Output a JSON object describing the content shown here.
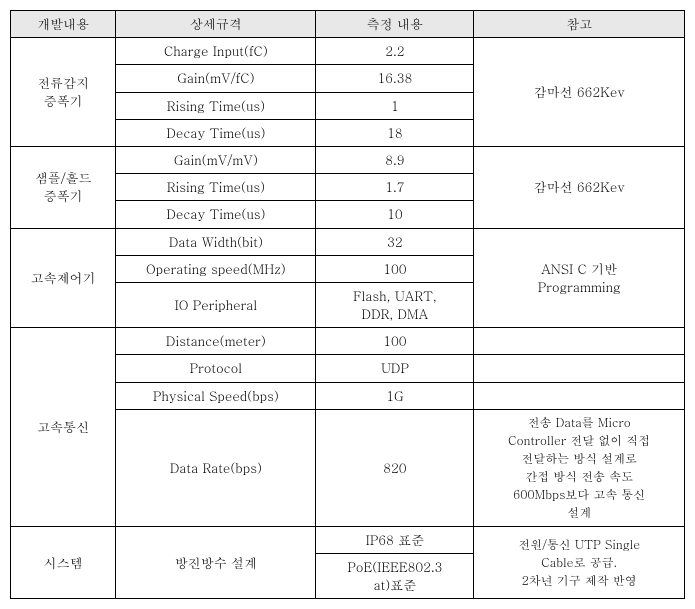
{
  "headers": {
    "c1": "개발내용",
    "c2": "상세규격",
    "c3": "측정 내용",
    "c4": "참고"
  },
  "group1": {
    "name": "전류감지\n증폭기",
    "rows": [
      {
        "spec": "Charge Input(fC)",
        "val": "2.2"
      },
      {
        "spec": "Gain(mV/fC)",
        "val": "16.38"
      },
      {
        "spec": "Rising Time(us)",
        "val": "1"
      },
      {
        "spec": "Decay Time(us)",
        "val": "18"
      }
    ],
    "note": "감마선 662Kev"
  },
  "group2": {
    "name": "샘플/홀드\n증폭기",
    "rows": [
      {
        "spec": "Gain(mV/mV)",
        "val": "8.9"
      },
      {
        "spec": "Rising Time(us)",
        "val": "1.7"
      },
      {
        "spec": "Decay Time(us)",
        "val": "10"
      }
    ],
    "note": "감마선 662Kev"
  },
  "group3": {
    "name": "고속제어기",
    "rows": [
      {
        "spec": "Data Width(bit)",
        "val": "32"
      },
      {
        "spec": "Operating speed(MHz)",
        "val": "100"
      },
      {
        "spec": "IO Peripheral",
        "val": "Flash, UART,\nDDR, DMA"
      }
    ],
    "note": "ANSI C 기반\nProgramming"
  },
  "group4": {
    "name": "고속통신",
    "rows": [
      {
        "spec": "Distance(meter)",
        "val": "100",
        "note": ""
      },
      {
        "spec": "Protocol",
        "val": "UDP",
        "note": ""
      },
      {
        "spec": "Physical Speed(bps)",
        "val": "1G",
        "note": ""
      },
      {
        "spec": "Data Rate(bps)",
        "val": "820",
        "note": "전송 Data를 Micro\nController 전달 없이 직접\n전달하는 방식 설계로\n간접 방식 전송 속도\n600Mbps보다 고속 통신\n설계"
      }
    ]
  },
  "group5": {
    "name": "시스템",
    "spec": "방진방수 설계",
    "vals": [
      "IP68 표준",
      "PoE(IEEE802.3\nat)표준"
    ],
    "note": "전원/통신 UTP Single\nCable로 공급.\n2차년 기구 제작 반영"
  }
}
